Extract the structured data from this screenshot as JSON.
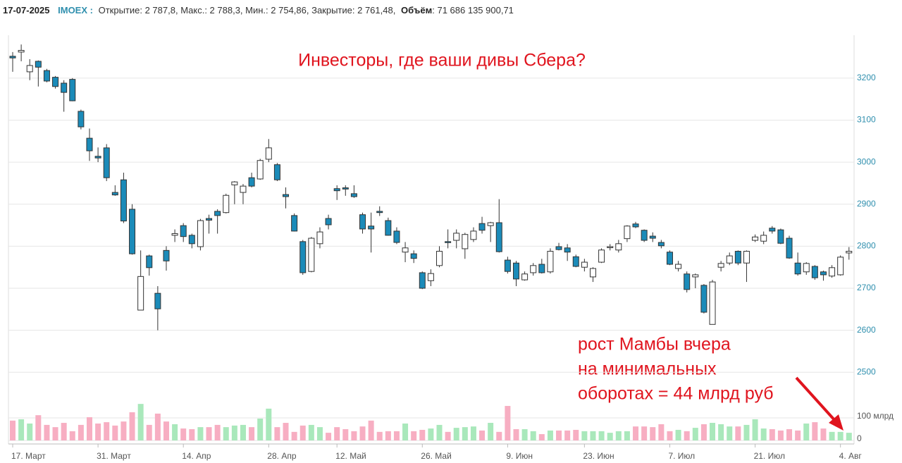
{
  "header": {
    "date": "17-07-2025",
    "ticker": "IMOEX :",
    "fields": "Открытие: 2 787,8, Макс.: 2 788,3, Мин.: 2 754,86, Закрытие: 2 761,48,",
    "volume_label": "Объём",
    "volume_value": ": 71 686 135 900,71"
  },
  "chart_data": {
    "type": "candlestick",
    "annotations": [
      "Инвесторы, где ваши дивы Сбера?",
      "рост Мамбы вчера",
      "на минимальных",
      "оборотах = 44 млрд руб"
    ],
    "categories": [
      "17. Март",
      null,
      null,
      null,
      null,
      null,
      null,
      null,
      null,
      null,
      "31. Март",
      null,
      null,
      null,
      null,
      null,
      null,
      null,
      null,
      null,
      "14. Апр",
      null,
      null,
      null,
      null,
      null,
      null,
      null,
      null,
      null,
      "28. Апр",
      null,
      null,
      null,
      null,
      null,
      null,
      null,
      "12. Май",
      null,
      null,
      null,
      null,
      null,
      null,
      null,
      null,
      null,
      "26. Май",
      null,
      null,
      null,
      null,
      null,
      null,
      null,
      null,
      null,
      "9. Июн",
      null,
      null,
      null,
      null,
      null,
      null,
      null,
      null,
      "23. Июн",
      null,
      null,
      null,
      null,
      null,
      null,
      null,
      null,
      null,
      "7. Июл",
      null,
      null,
      null,
      null,
      null,
      null,
      null,
      null,
      null,
      "21. Июл",
      null,
      null,
      null,
      null,
      null,
      null,
      null,
      null,
      null,
      "4. Авг",
      null
    ],
    "open": [
      3252,
      3262,
      3215,
      3240,
      3218,
      3202,
      3188,
      3197,
      3121,
      3057,
      3014,
      3034,
      2928,
      2958,
      2888,
      2648,
      2777,
      2688,
      2790,
      2826,
      2849,
      2826,
      2799,
      2866,
      2883,
      2880,
      2946,
      2928,
      2963,
      2960,
      3007,
      2994,
      2923,
      2873,
      2811,
      2740,
      2806,
      2866,
      2937,
      2939,
      2925,
      2875,
      2848,
      2883,
      2861,
      2836,
      2786,
      2782,
      2737,
      2718,
      2754,
      2811,
      2814,
      2794,
      2816,
      2854,
      2849,
      2856,
      2767,
      2760,
      2720,
      2737,
      2757,
      2739,
      2799,
      2796,
      2775,
      2750,
      2727,
      2762,
      2797,
      2791,
      2818,
      2853,
      2838,
      2824,
      2809,
      2786,
      2747,
      2734,
      2727,
      2707,
      2614,
      2750,
      2760,
      2788,
      2760,
      2814,
      2812,
      2843,
      2839,
      2819,
      2760,
      2739,
      2752,
      2739,
      2729,
      2732,
      2784
    ],
    "high": [
      3262,
      3280,
      3245,
      3242,
      3222,
      3205,
      3195,
      3200,
      3125,
      3080,
      3035,
      3043,
      2945,
      2975,
      2900,
      2790,
      2780,
      2705,
      2800,
      2840,
      2855,
      2830,
      2865,
      2875,
      2888,
      2925,
      2955,
      2948,
      2975,
      3008,
      3055,
      2998,
      2940,
      2878,
      2815,
      2822,
      2845,
      2875,
      2945,
      2945,
      2945,
      2880,
      2880,
      2895,
      2868,
      2845,
      2810,
      2790,
      2740,
      2745,
      2800,
      2840,
      2840,
      2832,
      2845,
      2870,
      2858,
      2912,
      2775,
      2765,
      2740,
      2760,
      2770,
      2795,
      2808,
      2805,
      2780,
      2770,
      2750,
      2795,
      2805,
      2815,
      2850,
      2858,
      2840,
      2833,
      2815,
      2790,
      2765,
      2740,
      2735,
      2710,
      2720,
      2765,
      2785,
      2790,
      2790,
      2828,
      2835,
      2848,
      2842,
      2825,
      2785,
      2762,
      2755,
      2742,
      2755,
      2778,
      2798
    ],
    "low": [
      3215,
      3240,
      3195,
      3180,
      3190,
      3175,
      3120,
      3145,
      3078,
      3003,
      3000,
      2955,
      2920,
      2855,
      2780,
      2648,
      2730,
      2600,
      2742,
      2810,
      2810,
      2795,
      2790,
      2830,
      2830,
      2878,
      2900,
      2900,
      2940,
      2958,
      3000,
      2955,
      2890,
      2835,
      2732,
      2738,
      2795,
      2840,
      2910,
      2920,
      2915,
      2830,
      2785,
      2872,
      2825,
      2805,
      2762,
      2760,
      2698,
      2705,
      2750,
      2795,
      2795,
      2770,
      2810,
      2830,
      2810,
      2785,
      2735,
      2705,
      2718,
      2730,
      2735,
      2735,
      2790,
      2765,
      2750,
      2740,
      2715,
      2760,
      2790,
      2785,
      2810,
      2843,
      2810,
      2810,
      2795,
      2755,
      2740,
      2690,
      2700,
      2640,
      2614,
      2740,
      2755,
      2755,
      2715,
      2810,
      2805,
      2830,
      2805,
      2770,
      2730,
      2732,
      2720,
      2718,
      2725,
      2730,
      2768
    ],
    "close": [
      3248,
      3266,
      3230,
      3226,
      3193,
      3180,
      3166,
      3146,
      3084,
      3027,
      3010,
      2963,
      2922,
      2860,
      2782,
      2728,
      2749,
      2651,
      2765,
      2830,
      2823,
      2806,
      2861,
      2862,
      2873,
      2921,
      2953,
      2943,
      2943,
      3004,
      3034,
      2958,
      2918,
      2836,
      2737,
      2819,
      2834,
      2851,
      2932,
      2936,
      2918,
      2841,
      2841,
      2880,
      2826,
      2809,
      2796,
      2771,
      2700,
      2735,
      2788,
      2809,
      2831,
      2828,
      2836,
      2838,
      2856,
      2787,
      2740,
      2722,
      2734,
      2754,
      2737,
      2788,
      2792,
      2786,
      2752,
      2762,
      2747,
      2791,
      2799,
      2806,
      2848,
      2846,
      2814,
      2819,
      2801,
      2757,
      2757,
      2697,
      2732,
      2643,
      2715,
      2759,
      2777,
      2760,
      2788,
      2822,
      2826,
      2836,
      2807,
      2772,
      2734,
      2759,
      2725,
      2732,
      2749,
      2774,
      2788
    ],
    "volume": [
      88,
      94,
      75,
      112,
      69,
      59,
      78,
      41,
      69,
      103,
      75,
      81,
      66,
      84,
      125,
      162,
      69,
      119,
      84,
      72,
      53,
      50,
      59,
      59,
      69,
      59,
      66,
      69,
      59,
      97,
      141,
      59,
      78,
      38,
      66,
      69,
      59,
      34,
      59,
      50,
      41,
      62,
      88,
      38,
      41,
      41,
      75,
      41,
      47,
      53,
      69,
      38,
      56,
      59,
      62,
      44,
      78,
      38,
      153,
      50,
      50,
      41,
      28,
      44,
      44,
      44,
      47,
      41,
      41,
      41,
      34,
      41,
      41,
      62,
      62,
      59,
      72,
      41,
      47,
      41,
      56,
      72,
      78,
      72,
      62,
      62,
      69,
      94,
      53,
      50,
      44,
      50,
      44,
      75,
      81,
      53,
      38,
      38,
      34
    ],
    "ylim": [
      2472,
      3302
    ],
    "yticks": [
      2500,
      2600,
      2700,
      2800,
      2900,
      3000,
      3100,
      3200
    ],
    "y2lim": [
      0,
      200
    ],
    "y2ticks": [
      0,
      {
        "value": 100,
        "label": "100 млрд"
      }
    ],
    "up_color": "#ffffff",
    "down_color": "#1b8bb9",
    "volume_up_color": "#a9e8bb",
    "volume_down_color": "#f7aec2",
    "grid": true
  }
}
